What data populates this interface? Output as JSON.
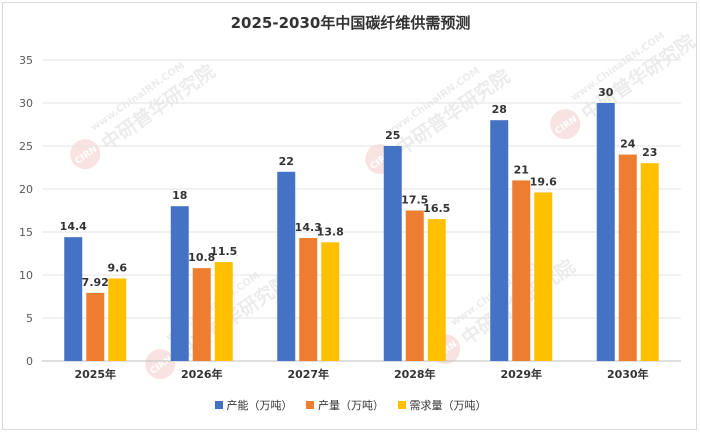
{
  "chart_data": {
    "type": "bar",
    "title": "2025-2030年中国碳纤维供需预测",
    "categories": [
      "2025年",
      "2026年",
      "2027年",
      "2028年",
      "2029年",
      "2030年"
    ],
    "series": [
      {
        "name": "产能（万吨）",
        "color": "#4472C4",
        "values": [
          14.4,
          18,
          22,
          25,
          28,
          30
        ]
      },
      {
        "name": "产量（万吨）",
        "color": "#ED7D31",
        "values": [
          7.92,
          10.8,
          14.3,
          17.5,
          21,
          24
        ]
      },
      {
        "name": "需求量（万吨）",
        "color": "#FFC000",
        "values": [
          9.6,
          11.5,
          13.8,
          16.5,
          19.6,
          23
        ]
      }
    ],
    "ylim": [
      0,
      35
    ],
    "yticks": [
      0,
      5,
      10,
      15,
      20,
      25,
      30,
      35
    ],
    "grid": true,
    "legend_position": "bottom",
    "data_labels": true
  },
  "watermark": {
    "url_text": "www.ChinaIRN.COM",
    "cn_text": "中研普华研究院",
    "logo_text": "CIRN"
  }
}
